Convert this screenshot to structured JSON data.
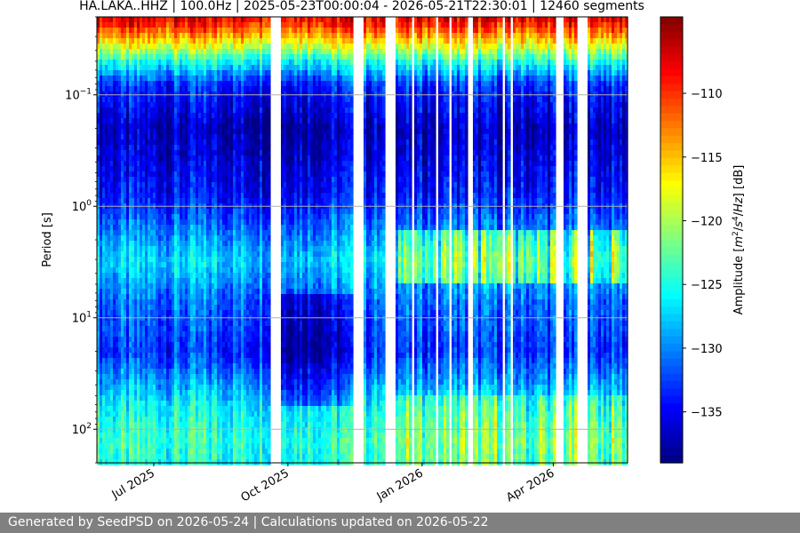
{
  "chart_data": {
    "type": "heatmap",
    "title": "HA.LAKA..HHZ | 100.0Hz | 2025-05-23T00:00:04 - 2026-05-21T22:30:01 | 12460 segments",
    "xlabel": "",
    "ylabel": "Period [s]",
    "x_range": [
      "2025-05-23T00:00:04",
      "2026-05-21T22:30:01"
    ],
    "x_ticks": [
      {
        "date": "2025-07-01",
        "label": "Jul 2025"
      },
      {
        "date": "2025-10-01",
        "label": "Oct 2025"
      },
      {
        "date": "2026-01-01",
        "label": "Jan 2026"
      },
      {
        "date": "2026-04-01",
        "label": "Apr 2026"
      }
    ],
    "y_scale": "log",
    "y_inverted": true,
    "y_range": [
      0.02,
      200
    ],
    "y_ticks": [
      {
        "value": 0.1,
        "base": "10",
        "exp": "−1"
      },
      {
        "value": 1,
        "base": "10",
        "exp": "0"
      },
      {
        "value": 10,
        "base": "10",
        "exp": "1"
      },
      {
        "value": 100,
        "base": "10",
        "exp": "2"
      }
    ],
    "grid": true,
    "colormap": "jet",
    "colorbar": {
      "label_parts": [
        "Amplitude [",
        "m",
        "2",
        "/",
        "s",
        "4",
        "/",
        "Hz",
        "] [dB]"
      ],
      "range": [
        -139,
        -104
      ],
      "ticks": [
        -110,
        -115,
        -120,
        -125,
        -130,
        -135
      ],
      "tick_labels": [
        "−110",
        "−115",
        "−120",
        "−125",
        "−130",
        "−135"
      ]
    },
    "data_gaps": [
      [
        "2025-09-19",
        "2025-09-27"
      ],
      [
        "2025-11-15",
        "2025-11-22"
      ],
      [
        "2025-12-02",
        "2025-12-03"
      ],
      [
        "2025-12-07",
        "2025-12-14"
      ],
      [
        "2025-12-25",
        "2025-12-27"
      ],
      [
        "2026-01-11",
        "2026-01-13"
      ],
      [
        "2026-01-20",
        "2026-01-22"
      ],
      [
        "2026-02-02",
        "2026-02-05"
      ],
      [
        "2026-02-21",
        "2026-02-22"
      ],
      [
        "2026-02-25",
        "2026-02-27"
      ],
      [
        "2026-03-03",
        "2026-03-04"
      ],
      [
        "2026-03-24",
        "2026-03-25"
      ],
      [
        "2026-03-26",
        "2026-03-27"
      ],
      [
        "2026-04-02",
        "2026-04-08"
      ],
      [
        "2026-04-18",
        "2026-04-24"
      ]
    ],
    "period_profile_db": [
      {
        "period": 0.022,
        "db": -108
      },
      {
        "period": 0.03,
        "db": -114
      },
      {
        "period": 0.05,
        "db": -125
      },
      {
        "period": 0.08,
        "db": -133
      },
      {
        "period": 0.2,
        "db": -137
      },
      {
        "period": 0.8,
        "db": -134
      },
      {
        "period": 3,
        "db": -127
      },
      {
        "period": 7,
        "db": -131
      },
      {
        "period": 20,
        "db": -133
      },
      {
        "period": 60,
        "db": -126
      },
      {
        "period": 120,
        "db": -124
      },
      {
        "period": 200,
        "db": -125
      }
    ]
  },
  "footer": {
    "text": "Generated by SeedPSD on 2026-05-24 | Calculations updated on 2026-05-22"
  }
}
